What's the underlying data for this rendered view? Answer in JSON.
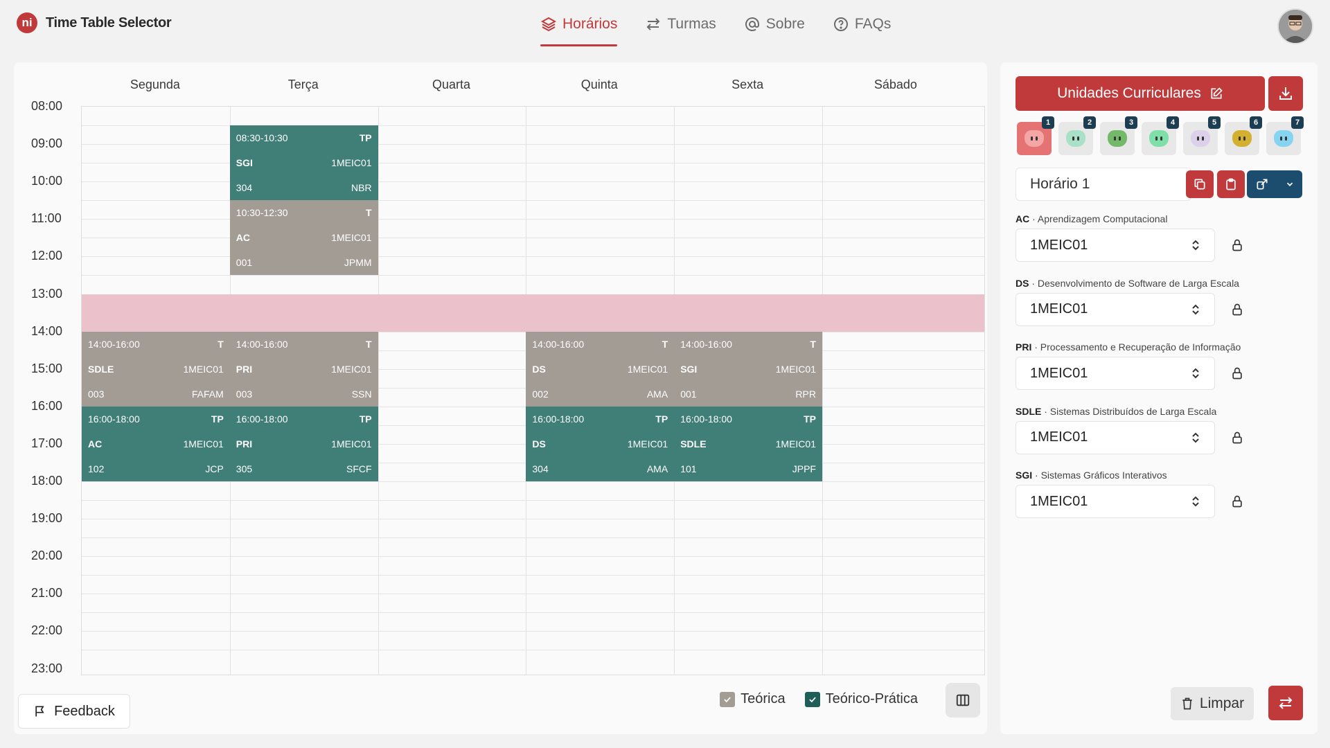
{
  "app": {
    "logo_text": "ni",
    "title": "Time Table Selector"
  },
  "nav": [
    {
      "label": "Horários",
      "icon": "layers-icon",
      "active": true
    },
    {
      "label": "Turmas",
      "icon": "arrows-swap-icon",
      "active": false
    },
    {
      "label": "Sobre",
      "icon": "at-icon",
      "active": false
    },
    {
      "label": "FAQs",
      "icon": "question-circle-icon",
      "active": false
    }
  ],
  "days": [
    "Segunda",
    "Terça",
    "Quarta",
    "Quinta",
    "Sexta",
    "Sábado"
  ],
  "hours": [
    "08:00",
    "09:00",
    "10:00",
    "11:00",
    "12:00",
    "13:00",
    "14:00",
    "15:00",
    "16:00",
    "17:00",
    "18:00",
    "19:00",
    "20:00",
    "21:00",
    "22:00",
    "23:00"
  ],
  "lessons": [
    {
      "day": 1,
      "start": 8.5,
      "end": 10.5,
      "time": "08:30-10:30",
      "type": "TP",
      "course": "SGI",
      "class": "1MEIC01",
      "room": "304",
      "teacher": "NBR"
    },
    {
      "day": 1,
      "start": 10.5,
      "end": 12.5,
      "time": "10:30-12:30",
      "type": "T",
      "course": "AC",
      "class": "1MEIC01",
      "room": "001",
      "teacher": "JPMM"
    },
    {
      "day": 0,
      "start": 14,
      "end": 16,
      "time": "14:00-16:00",
      "type": "T",
      "course": "SDLE",
      "class": "1MEIC01",
      "room": "003",
      "teacher": "FAFAM"
    },
    {
      "day": 1,
      "start": 14,
      "end": 16,
      "time": "14:00-16:00",
      "type": "T",
      "course": "PRI",
      "class": "1MEIC01",
      "room": "003",
      "teacher": "SSN"
    },
    {
      "day": 3,
      "start": 14,
      "end": 16,
      "time": "14:00-16:00",
      "type": "T",
      "course": "DS",
      "class": "1MEIC01",
      "room": "002",
      "teacher": "AMA"
    },
    {
      "day": 4,
      "start": 14,
      "end": 16,
      "time": "14:00-16:00",
      "type": "T",
      "course": "SGI",
      "class": "1MEIC01",
      "room": "001",
      "teacher": "RPR"
    },
    {
      "day": 0,
      "start": 16,
      "end": 18,
      "time": "16:00-18:00",
      "type": "TP",
      "course": "AC",
      "class": "1MEIC01",
      "room": "102",
      "teacher": "JCP"
    },
    {
      "day": 1,
      "start": 16,
      "end": 18,
      "time": "16:00-18:00",
      "type": "TP",
      "course": "PRI",
      "class": "1MEIC01",
      "room": "305",
      "teacher": "SFCF"
    },
    {
      "day": 3,
      "start": 16,
      "end": 18,
      "time": "16:00-18:00",
      "type": "TP",
      "course": "DS",
      "class": "1MEIC01",
      "room": "304",
      "teacher": "AMA"
    },
    {
      "day": 4,
      "start": 16,
      "end": 18,
      "time": "16:00-18:00",
      "type": "TP",
      "course": "SDLE",
      "class": "1MEIC01",
      "room": "101",
      "teacher": "JPPF"
    }
  ],
  "legend": {
    "theoretical": "Teórica",
    "theoretical_practical": "Teórico-Prática"
  },
  "feedback_label": "Feedback",
  "sidebar": {
    "uc_button": "Unidades Curriculares",
    "schedules": [
      {
        "number": "1",
        "color": "#f4a6a6"
      },
      {
        "number": "2",
        "color": "#a8e0c8"
      },
      {
        "number": "3",
        "color": "#74b86a"
      },
      {
        "number": "4",
        "color": "#7ee0a8"
      },
      {
        "number": "5",
        "color": "#ddd0ea"
      },
      {
        "number": "6",
        "color": "#d4b030"
      },
      {
        "number": "7",
        "color": "#86d4f0"
      }
    ],
    "schedule_name": "Horário 1",
    "courses": [
      {
        "code": "AC",
        "name": "Aprendizagem Computacional",
        "selected": "1MEIC01"
      },
      {
        "code": "DS",
        "name": "Desenvolvimento de Software de Larga Escala",
        "selected": "1MEIC01"
      },
      {
        "code": "PRI",
        "name": "Processamento e Recuperação de Informação",
        "selected": "1MEIC01"
      },
      {
        "code": "SDLE",
        "name": "Sistemas Distribuídos de Larga Escala",
        "selected": "1MEIC01"
      },
      {
        "code": "SGI",
        "name": "Sistemas Gráficos Interativos",
        "selected": "1MEIC01"
      }
    ],
    "clear_label": "Limpar"
  },
  "colors": {
    "accent": "#c0393b",
    "tp": "#3f7f78",
    "t": "#a39c95",
    "lunch": "#ebc1cc",
    "dark": "#1d4d6e"
  }
}
